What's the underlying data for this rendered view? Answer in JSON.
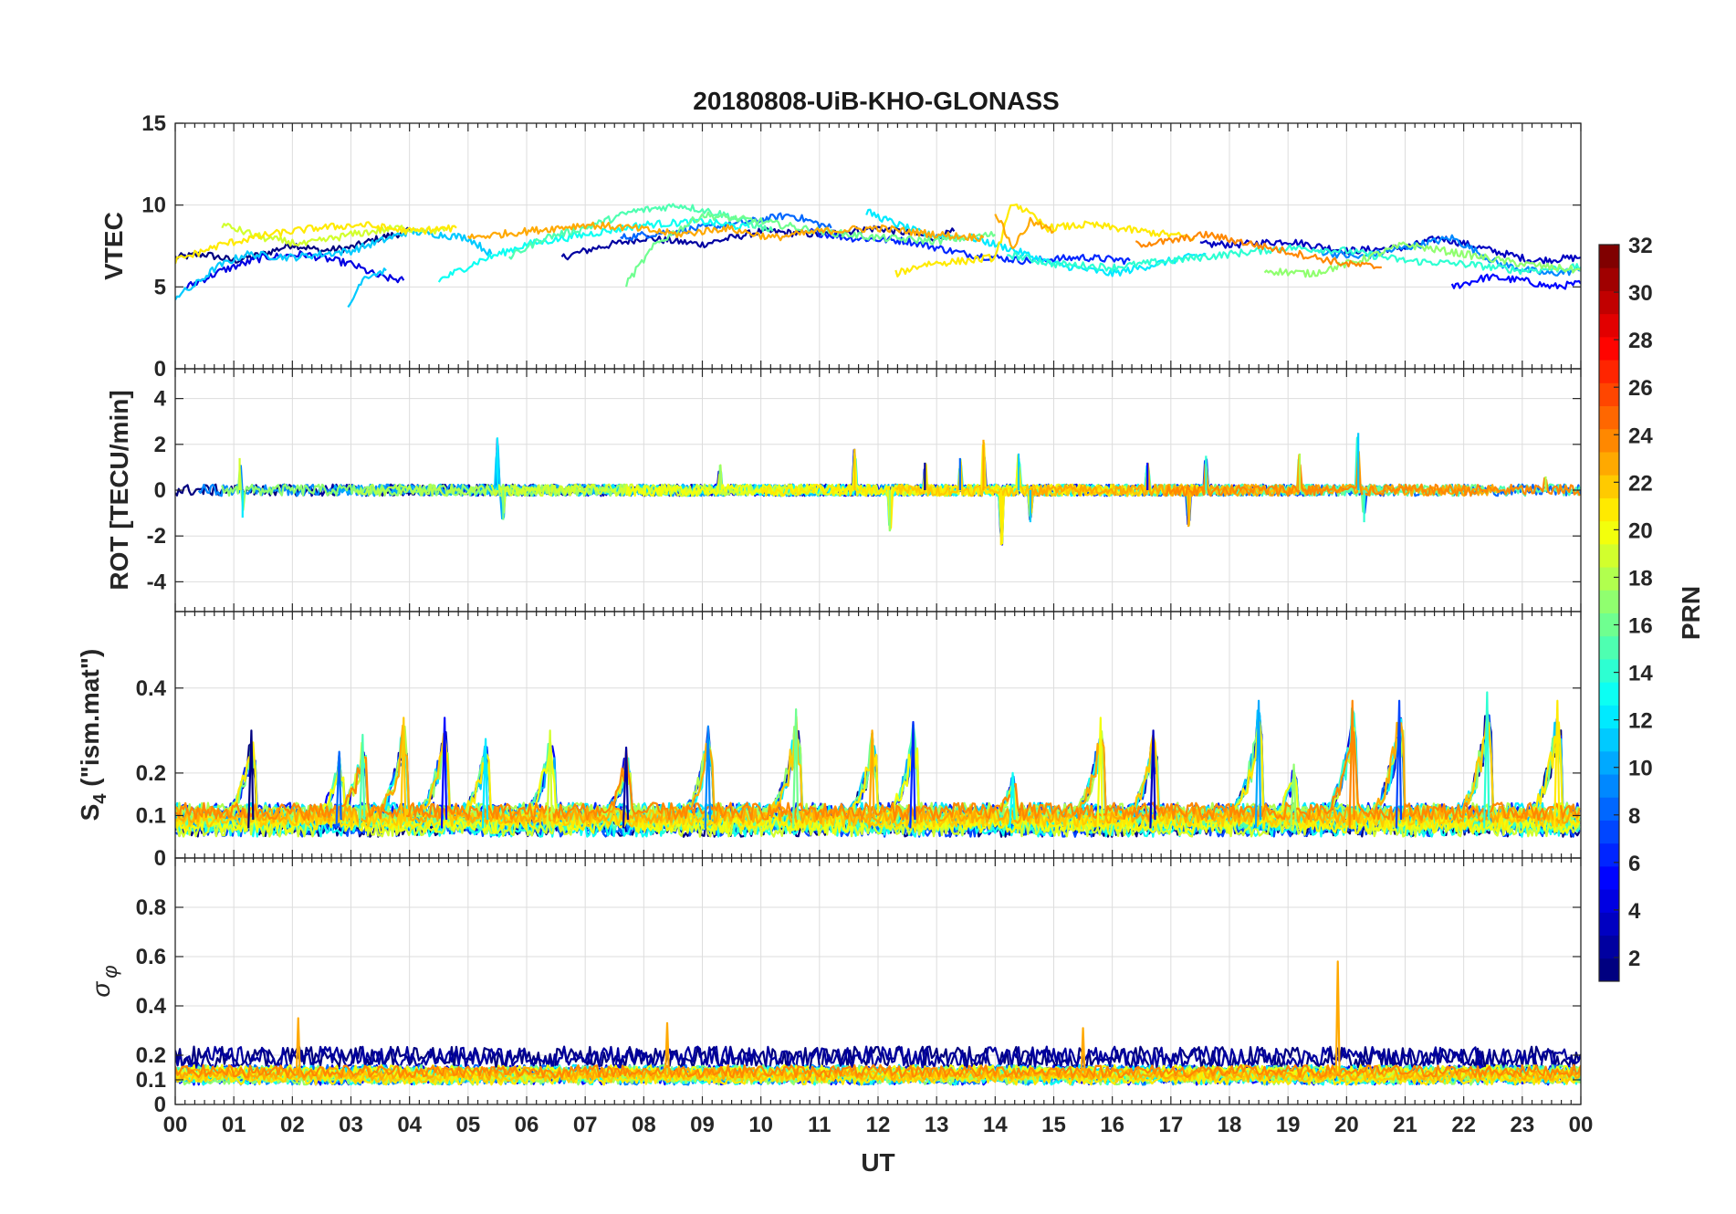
{
  "figure": {
    "title": "20180808-UiB-KHO-GLONASS",
    "colors": {
      "axis": "#262626",
      "grid": "#dddddd",
      "background": "#ffffff"
    }
  },
  "chart_data": [
    {
      "type": "line",
      "name": "vtec",
      "title": "20180808-UiB-KHO-GLONASS",
      "ylabel": "VTEC",
      "ylim": [
        0,
        15
      ],
      "yticks": [
        0,
        5,
        10,
        15
      ],
      "ytick_labels": [
        "0",
        "5",
        "10",
        "15"
      ],
      "xlim": [
        0,
        24
      ],
      "series": [
        {
          "prn": 1,
          "x": [
            0,
            0.5,
            1,
            1.5,
            2,
            2.5,
            3,
            3.5,
            4
          ],
          "y": [
            6.8,
            7.0,
            6.6,
            7.0,
            7.6,
            7.2,
            7.4,
            8.0,
            8.4
          ]
        },
        {
          "prn": 2,
          "x": [
            6.6,
            7.2,
            8,
            9,
            10,
            11,
            12,
            13,
            13.3
          ],
          "y": [
            6.8,
            7.4,
            8.0,
            7.6,
            8.4,
            8.2,
            8.6,
            8.0,
            8.4
          ]
        },
        {
          "prn": 3,
          "x": [
            17.5,
            18.2,
            19,
            20,
            21,
            21.6,
            22.5,
            23.2,
            24
          ],
          "y": [
            7.6,
            7.6,
            7.8,
            7.2,
            7.4,
            8.0,
            7.2,
            6.6,
            6.8
          ]
        },
        {
          "prn": 4,
          "x": [
            0.2,
            0.8,
            1.5,
            2.2,
            3,
            3.5,
            3.9
          ],
          "y": [
            5.0,
            6.0,
            6.8,
            7.0,
            6.4,
            5.6,
            5.4
          ]
        },
        {
          "prn": 5,
          "x": [
            21.8,
            22.4,
            23,
            23.5,
            24
          ],
          "y": [
            5.0,
            5.6,
            5.4,
            5.0,
            5.2
          ]
        },
        {
          "prn": 6,
          "x": [
            10.8,
            11.5,
            12.5,
            13.5,
            14.5,
            15.5,
            16.3
          ],
          "y": [
            8.4,
            8.0,
            7.8,
            7.0,
            6.6,
            6.8,
            6.6
          ]
        },
        {
          "prn": 8,
          "x": [
            7.6,
            8.5,
            9.5,
            10.5,
            11.2
          ],
          "y": [
            8.0,
            8.4,
            8.8,
            9.4,
            8.6
          ]
        },
        {
          "prn": 9,
          "x": [
            19.5,
            20.2,
            21,
            21.8,
            22.6,
            23.4,
            24
          ],
          "y": [
            7.2,
            6.8,
            7.4,
            8.0,
            6.4,
            5.8,
            6.0
          ]
        },
        {
          "prn": 11,
          "x": [
            0,
            0.3,
            0.7,
            1.2,
            2,
            3,
            4,
            5,
            5.4
          ],
          "y": [
            4.4,
            5.0,
            6.2,
            7.0,
            6.8,
            7.2,
            8.4,
            8.0,
            7.0
          ]
        },
        {
          "prn": 11,
          "x": [
            2.95,
            3.2,
            3.6
          ],
          "y": [
            3.6,
            5.6,
            6.0
          ]
        },
        {
          "prn": 12,
          "x": [
            11.8,
            12.2,
            12.8,
            13.6,
            14.2,
            15,
            16,
            17,
            17.6
          ],
          "y": [
            9.6,
            9.0,
            8.2,
            8.0,
            7.4,
            6.4,
            5.8,
            6.6,
            7.0
          ]
        },
        {
          "prn": 13,
          "x": [
            4.5,
            5.2,
            6,
            7,
            8,
            9,
            9.8
          ],
          "y": [
            5.4,
            6.6,
            7.6,
            8.2,
            8.8,
            9.0,
            8.6
          ]
        },
        {
          "prn": 14,
          "x": [
            14.2,
            15,
            16,
            17,
            18,
            19,
            20,
            21,
            22,
            23,
            24
          ],
          "y": [
            7.0,
            6.4,
            6.2,
            6.6,
            7.0,
            7.4,
            7.2,
            6.6,
            6.4,
            6.0,
            6.2
          ]
        },
        {
          "prn": 15,
          "x": [
            5.7,
            6.3,
            7,
            7.8,
            8.6,
            9.4,
            10.2
          ],
          "y": [
            6.8,
            8.0,
            8.6,
            9.6,
            10.0,
            9.4,
            8.4
          ]
        },
        {
          "prn": 16,
          "x": [
            7.7,
            8.2,
            9,
            10,
            11,
            12,
            13,
            14
          ],
          "y": [
            5.2,
            7.6,
            9.4,
            9.0,
            8.4,
            8.0,
            7.8,
            8.2
          ]
        },
        {
          "prn": 17,
          "x": [
            18.6,
            19.4,
            20.2,
            21,
            22,
            23,
            24
          ],
          "y": [
            6.0,
            5.8,
            6.6,
            7.6,
            7.0,
            6.4,
            6.0
          ]
        },
        {
          "prn": 19,
          "x": [
            0.8,
            1.5,
            2.2,
            3,
            3.8,
            4.6
          ],
          "y": [
            8.8,
            8.0,
            7.6,
            8.2,
            8.6,
            8.4
          ]
        },
        {
          "prn": 21,
          "x": [
            0,
            0.8,
            1.6,
            2.4,
            3.2,
            4,
            4.8
          ],
          "y": [
            6.6,
            7.6,
            8.2,
            8.6,
            8.8,
            8.4,
            8.6
          ]
        },
        {
          "prn": 21,
          "x": [
            12.3,
            12.8,
            13.5,
            14,
            14.3,
            14.9,
            15.6,
            16.5,
            17.4
          ],
          "y": [
            5.8,
            6.4,
            6.6,
            6.8,
            10.2,
            8.6,
            8.8,
            8.4,
            8.0
          ]
        },
        {
          "prn": 23,
          "x": [
            5,
            6,
            7,
            7.8,
            8.6,
            9.4,
            10.2,
            11,
            12,
            13,
            13.8
          ],
          "y": [
            8.0,
            8.4,
            8.8,
            8.6,
            8.2,
            8.6,
            8.0,
            8.4,
            8.6,
            8.2,
            8.0
          ]
        },
        {
          "prn": 23,
          "x": [
            14,
            14.3,
            14.6,
            15
          ],
          "y": [
            9.6,
            7.4,
            9.0,
            8.4
          ]
        },
        {
          "prn": 24,
          "x": [
            16.4,
            17,
            17.6,
            18.4,
            19.2,
            20,
            20.6
          ],
          "y": [
            7.6,
            7.8,
            8.2,
            7.6,
            7.0,
            6.4,
            6.2
          ]
        }
      ]
    },
    {
      "type": "line",
      "name": "rot",
      "ylabel": "ROT [TECU/min]",
      "ylim": [
        -5.3,
        5.3
      ],
      "yticks": [
        -4,
        -2,
        0,
        2,
        4
      ],
      "ytick_labels": [
        "-4",
        "-2",
        "0",
        "2",
        "4"
      ],
      "xlim": [
        0,
        24
      ],
      "noise": 0.25,
      "spikes": [
        {
          "x": 1.1,
          "y": 1.4
        },
        {
          "x": 1.15,
          "y": -1.2
        },
        {
          "x": 5.5,
          "y": 2.3
        },
        {
          "x": 5.6,
          "y": -1.3
        },
        {
          "x": 9.3,
          "y": 1.1
        },
        {
          "x": 11.6,
          "y": 1.8
        },
        {
          "x": 12.2,
          "y": -1.8
        },
        {
          "x": 12.8,
          "y": 1.2
        },
        {
          "x": 13.4,
          "y": 1.4
        },
        {
          "x": 13.8,
          "y": 2.2
        },
        {
          "x": 14.1,
          "y": -2.4
        },
        {
          "x": 14.4,
          "y": 1.6
        },
        {
          "x": 14.6,
          "y": -1.4
        },
        {
          "x": 16.6,
          "y": 1.2
        },
        {
          "x": 17.3,
          "y": -1.6
        },
        {
          "x": 17.6,
          "y": 1.5
        },
        {
          "x": 19.2,
          "y": 1.6
        },
        {
          "x": 20.2,
          "y": 2.5
        },
        {
          "x": 20.3,
          "y": -1.4
        },
        {
          "x": 23.4,
          "y": 0.6
        }
      ]
    },
    {
      "type": "line",
      "name": "s4",
      "ylabel": "S4 (\"ism.mat\")",
      "ylabel_main": "S",
      "ylabel_sub": "4",
      "ylabel_rest": " (\"ism.mat\")",
      "ylim": [
        0,
        0.58
      ],
      "yticks": [
        0,
        0.1,
        0.2,
        0.4
      ],
      "ytick_labels": [
        "0",
        "0.1",
        "0.2",
        "0.4"
      ],
      "xlim": [
        0,
        24
      ],
      "baseline": 0.07,
      "peaks": [
        {
          "x": 1.3,
          "y": 0.3
        },
        {
          "x": 2.8,
          "y": 0.25
        },
        {
          "x": 3.2,
          "y": 0.29
        },
        {
          "x": 3.9,
          "y": 0.33
        },
        {
          "x": 4.6,
          "y": 0.33
        },
        {
          "x": 5.3,
          "y": 0.28
        },
        {
          "x": 6.4,
          "y": 0.3
        },
        {
          "x": 7.7,
          "y": 0.26
        },
        {
          "x": 9.1,
          "y": 0.31
        },
        {
          "x": 10.6,
          "y": 0.35
        },
        {
          "x": 11.9,
          "y": 0.3
        },
        {
          "x": 12.6,
          "y": 0.32
        },
        {
          "x": 14.3,
          "y": 0.2
        },
        {
          "x": 15.8,
          "y": 0.33
        },
        {
          "x": 16.7,
          "y": 0.3
        },
        {
          "x": 18.5,
          "y": 0.37
        },
        {
          "x": 19.1,
          "y": 0.22
        },
        {
          "x": 20.1,
          "y": 0.37
        },
        {
          "x": 20.9,
          "y": 0.37
        },
        {
          "x": 22.4,
          "y": 0.39
        },
        {
          "x": 23.6,
          "y": 0.37
        }
      ]
    },
    {
      "type": "line",
      "name": "sigma_phi",
      "ylabel": "σ φ",
      "ylabel_main": "σ",
      "ylabel_sub": "φ",
      "ylim": [
        0,
        1
      ],
      "yticks": [
        0,
        0.1,
        0.2,
        0.4,
        0.6,
        0.8
      ],
      "ytick_labels": [
        "0",
        "0.1",
        "0.2",
        "0.4",
        "0.6",
        "0.8"
      ],
      "xlim": [
        0,
        24
      ],
      "xticks": [
        0,
        1,
        2,
        3,
        4,
        5,
        6,
        7,
        8,
        9,
        10,
        11,
        12,
        13,
        14,
        15,
        16,
        17,
        18,
        19,
        20,
        21,
        22,
        23,
        24
      ],
      "xtick_labels": [
        "00",
        "01",
        "02",
        "03",
        "04",
        "05",
        "06",
        "07",
        "08",
        "09",
        "10",
        "11",
        "12",
        "13",
        "14",
        "15",
        "16",
        "17",
        "18",
        "19",
        "20",
        "21",
        "22",
        "23",
        "00"
      ],
      "xlabel": "UT",
      "baseline": 0.12,
      "spikes": [
        {
          "x": 19.85,
          "y": 0.58
        },
        {
          "x": 8.4,
          "y": 0.33
        },
        {
          "x": 2.1,
          "y": 0.35
        },
        {
          "x": 15.5,
          "y": 0.31
        }
      ]
    }
  ],
  "colorbar": {
    "label": "PRN",
    "range": [
      1,
      32
    ],
    "ticks": [
      2,
      4,
      6,
      8,
      10,
      12,
      14,
      16,
      18,
      20,
      22,
      24,
      26,
      28,
      30,
      32
    ],
    "tick_labels": [
      "2",
      "4",
      "6",
      "8",
      "10",
      "12",
      "14",
      "16",
      "18",
      "20",
      "22",
      "24",
      "26",
      "28",
      "30",
      "32"
    ],
    "colormap": "jet"
  }
}
